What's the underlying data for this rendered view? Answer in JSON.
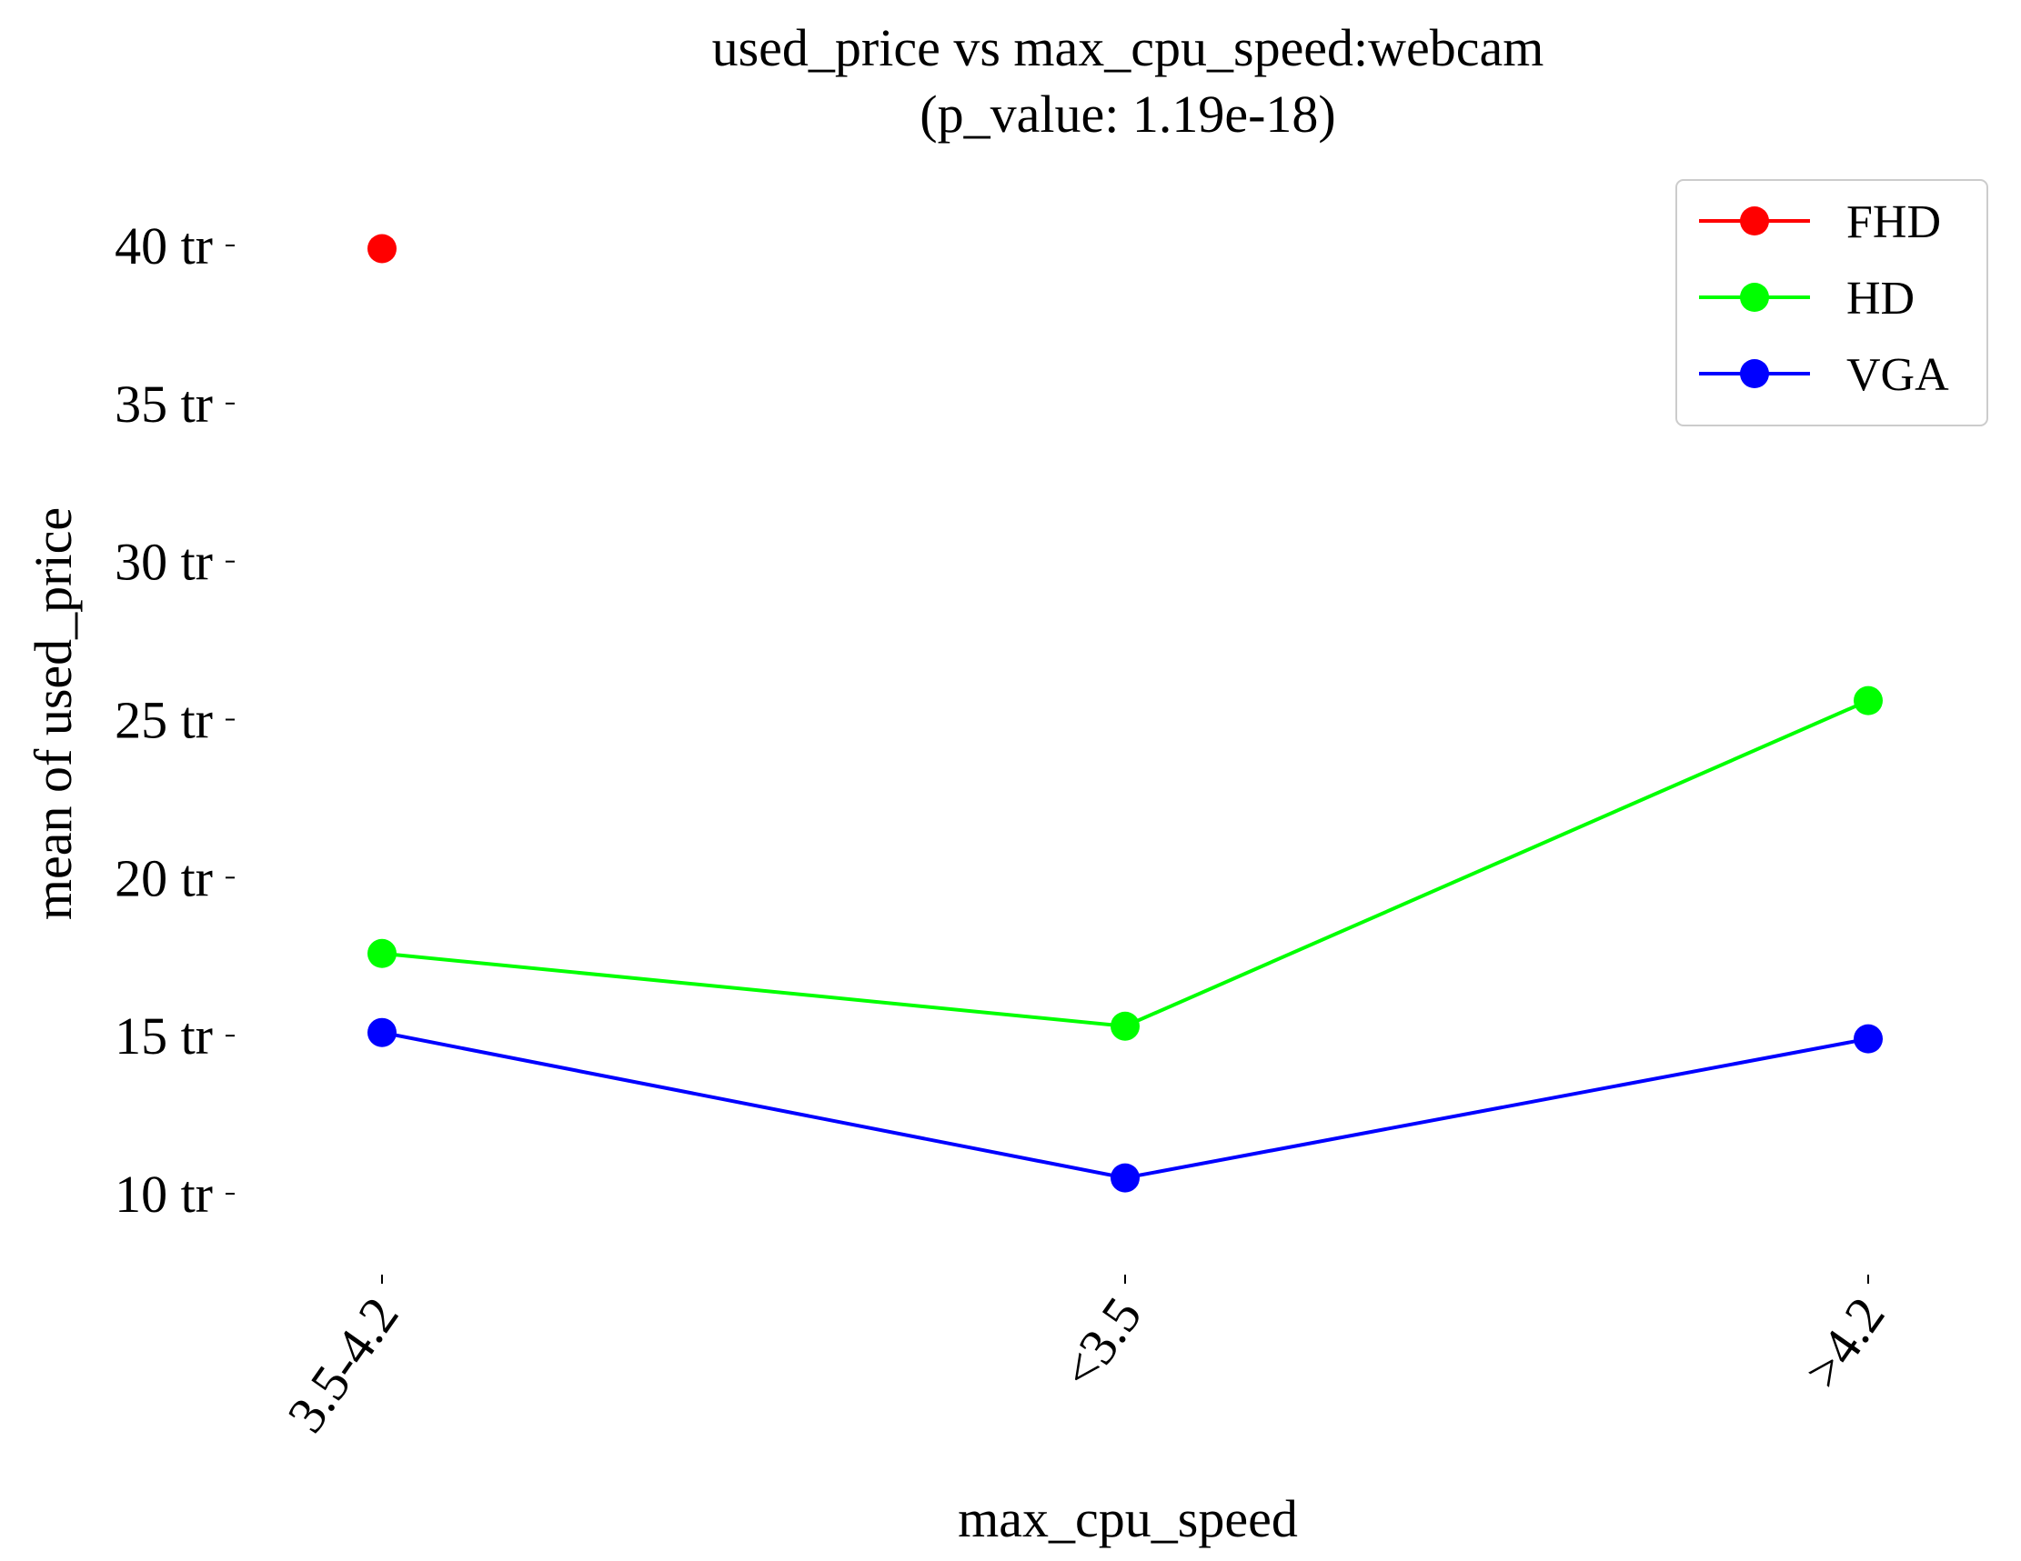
{
  "chart_data": {
    "type": "line",
    "title": "used_price vs max_cpu_speed:webcam",
    "subtitle": "(p_value: 1.19e-18)",
    "xlabel": "max_cpu_speed",
    "ylabel": "mean of used_price",
    "categories": [
      "3.5-4.2",
      "<3.5",
      ">4.2"
    ],
    "ylim": [
      7.5,
      42
    ],
    "yticks": [
      {
        "value": 10,
        "label": "10 tr"
      },
      {
        "value": 15,
        "label": "15 tr"
      },
      {
        "value": 20,
        "label": "20 tr"
      },
      {
        "value": 25,
        "label": "25 tr"
      },
      {
        "value": 30,
        "label": "30 tr"
      },
      {
        "value": 35,
        "label": "35 tr"
      },
      {
        "value": 40,
        "label": "40 tr"
      }
    ],
    "grid": false,
    "legend_position": "top-right",
    "series": [
      {
        "name": "FHD",
        "color": "#ff0000",
        "values": [
          39.9,
          null,
          null
        ]
      },
      {
        "name": "HD",
        "color": "#00ff00",
        "values": [
          17.6,
          15.3,
          25.6
        ]
      },
      {
        "name": "VGA",
        "color": "#0000ff",
        "values": [
          15.1,
          10.5,
          14.9
        ]
      }
    ]
  }
}
